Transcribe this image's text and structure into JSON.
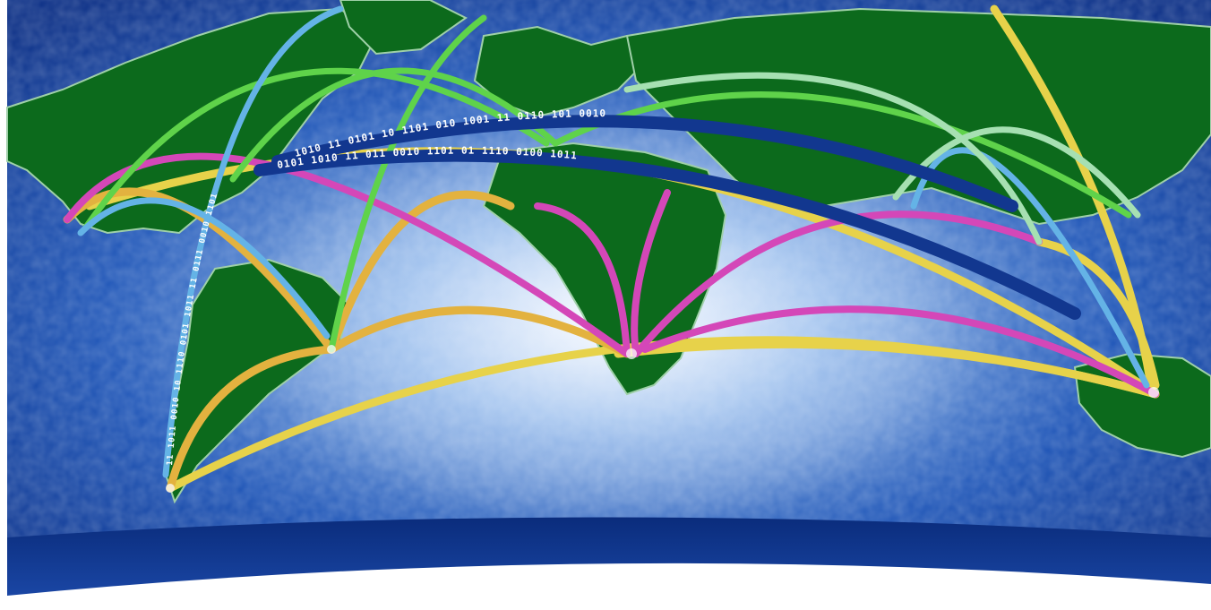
{
  "scene": {
    "subject": "world-map-data-arcs",
    "colors": {
      "ocean_dark": "#0b2f86",
      "ocean_mid": "#1f56b8",
      "ocean_light": "#8fb7ea",
      "glow": "#e6f0ff",
      "land": "#0c6a1c",
      "land_edge": "#9fd0a8",
      "rim": "#0a2c7c",
      "arc_yellow": "#e7d24a",
      "arc_orange": "#e3b23f",
      "arc_magenta": "#d447b8",
      "arc_green": "#5fd34a",
      "arc_lightblue": "#64b3e6",
      "arc_palegreen": "#a6e0b2",
      "arc_navy": "#12378f",
      "binary_text": "#ffffff"
    },
    "binary_strings": [
      "1010 11 0101 10 1101 010 1001 11 0110 101 0010",
      "0101 1010 11 011 0010 1101 01 1110 0100 1011",
      "11 1011 0010 10 1110 0101 1011 11 0111 0010 1101"
    ]
  }
}
